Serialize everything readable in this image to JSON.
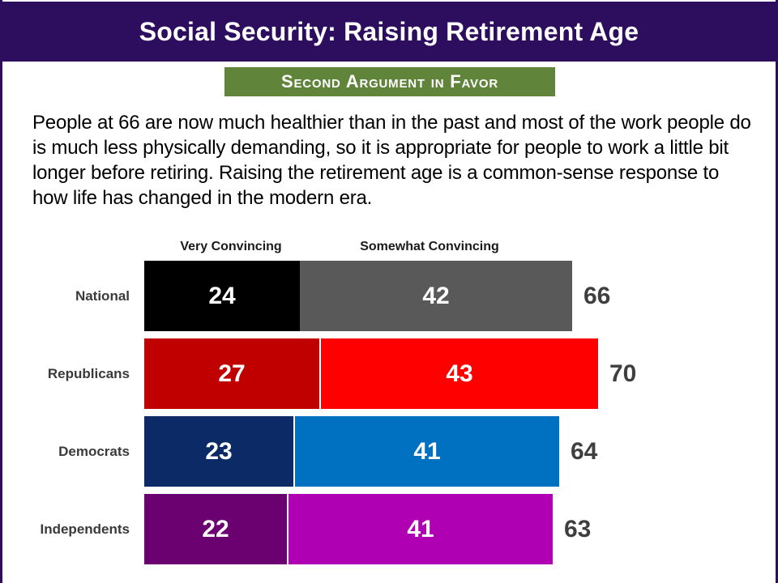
{
  "slide": {
    "title": "Social Security: Raising Retirement Age",
    "badge_label": "Second Argument in Favor",
    "argument_text": "People at 66 are now much healthier than in the past and most of the work people do is much less physically demanding, so it is appropriate for people to work a little bit longer before retiring. Raising the retirement age is a common-sense response to how life has changed in the modern era.",
    "colors": {
      "header_bg": "#2D0D5E",
      "badge_bg": "#61843B",
      "title_text": "#FFFFFF",
      "badge_text": "#FFFFFF",
      "body_text": "#000000",
      "category_label_text": "#3A3A3A",
      "total_label_text": "#3F3F3F",
      "edge_stripe": "#2D0D5E"
    }
  },
  "chart_data": {
    "type": "bar",
    "orientation": "horizontal",
    "stacked": true,
    "title": "Second Argument in Favor",
    "categories": [
      "National",
      "Republicans",
      "Democrats",
      "Independents"
    ],
    "series": [
      {
        "name": "Very Convincing",
        "values": [
          24,
          27,
          23,
          22
        ],
        "colors": [
          "#000000",
          "#C00000",
          "#0B2A66",
          "#6B0070"
        ]
      },
      {
        "name": "Somewhat Convincing",
        "values": [
          42,
          43,
          41,
          41
        ],
        "colors": [
          "#595959",
          "#FF0000",
          "#0070C0",
          "#B000B4"
        ]
      }
    ],
    "totals": [
      66,
      70,
      64,
      63
    ],
    "xlim": [
      0,
      100
    ],
    "value_labels": "inside-white",
    "legend_position": "top-as-column-headers",
    "grid": false
  }
}
